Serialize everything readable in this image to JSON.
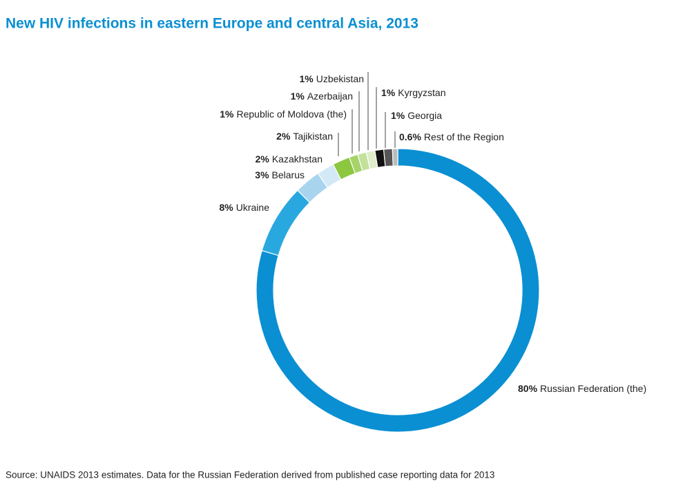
{
  "chart_data": {
    "type": "donut",
    "title": "New HIV infections in eastern Europe and central Asia, 2013",
    "source": "Source: UNAIDS 2013 estimates. Data for the Russian Federation derived from published case reporting data for 2013",
    "categories": [
      "Russian Federation (the)",
      "Ukraine",
      "Belarus",
      "Kazakhstan",
      "Tajikistan",
      "Republic of Moldova (the)",
      "Azerbaijan",
      "Uzbekistan",
      "Kyrgyzstan",
      "Georgia",
      "Rest of the Region"
    ],
    "values": [
      80,
      8,
      3,
      2,
      2,
      1,
      1,
      1,
      1,
      1,
      0.6
    ],
    "value_labels": [
      "80%",
      "8%",
      "3%",
      "2%",
      "2%",
      "1%",
      "1%",
      "1%",
      "1%",
      "1%",
      "0.6%"
    ],
    "colors": [
      "#0a8fd2",
      "#29a8e0",
      "#a8d4ee",
      "#d3e9f6",
      "#8dc63f",
      "#a6d36a",
      "#c3e19a",
      "#dfeec9",
      "#111111",
      "#555555",
      "#bbbbbb"
    ]
  }
}
